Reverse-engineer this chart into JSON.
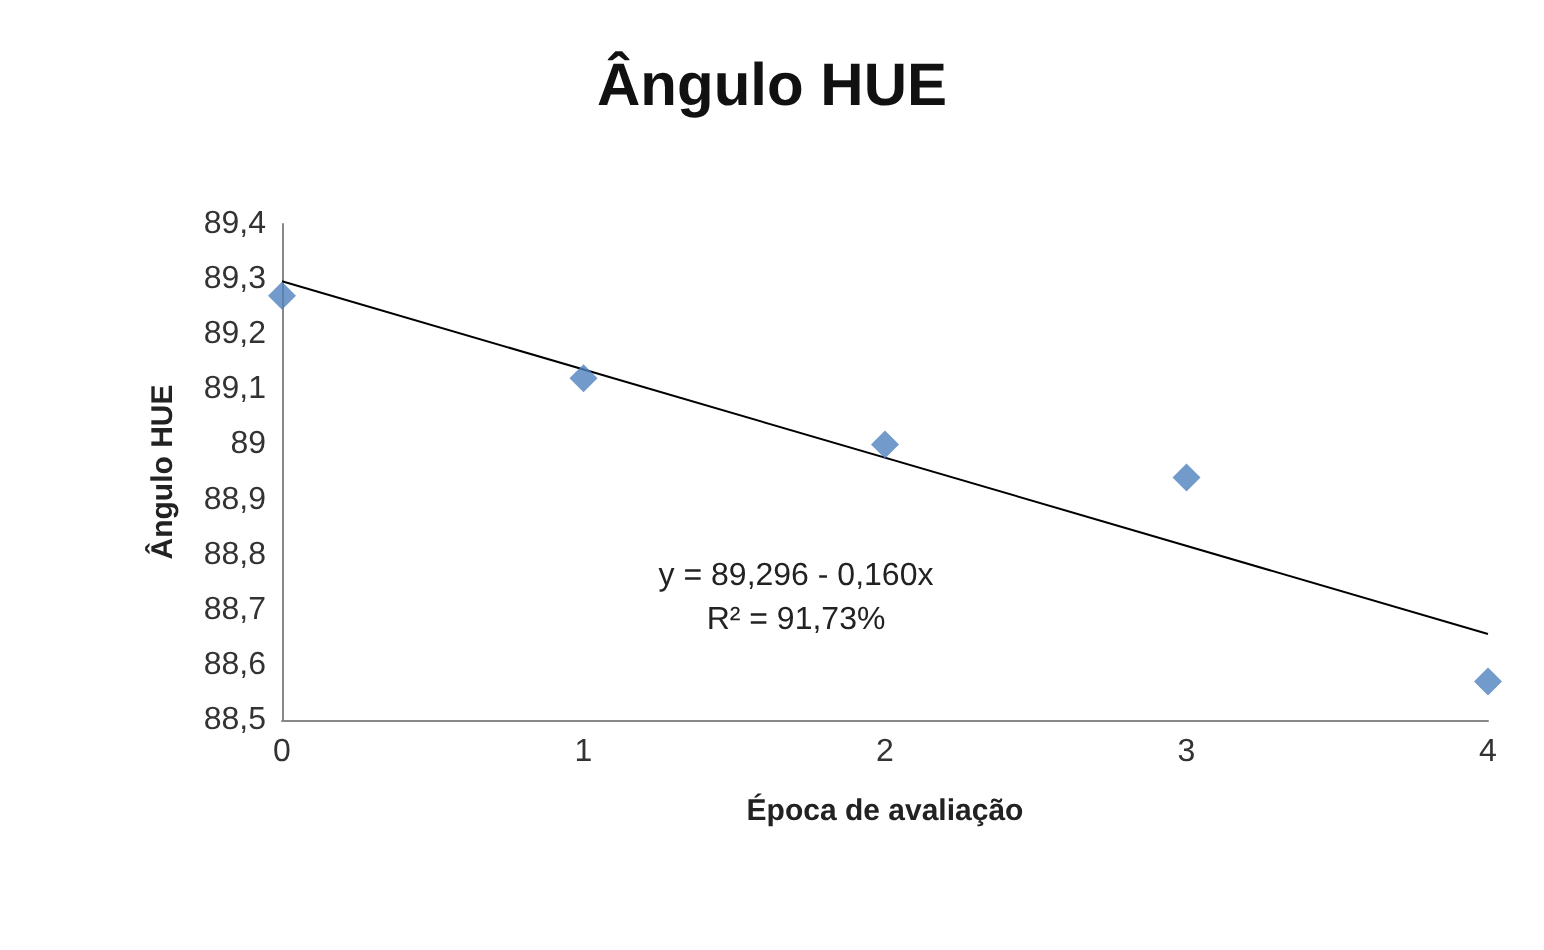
{
  "chart_data": {
    "type": "scatter",
    "title": "Ângulo HUE",
    "xlabel": "Época de avaliação",
    "ylabel": "Ângulo HUE",
    "x": [
      0,
      1,
      2,
      3,
      4
    ],
    "series": [
      {
        "color": "#4f81bd",
        "marker": "diamond",
        "values": [
          89.27,
          89.12,
          89.0,
          88.94,
          88.57
        ]
      },
      {
        "type": "line",
        "color": "#000000",
        "marker": "none",
        "x": [
          0,
          4
        ],
        "values": [
          89.296,
          88.656
        ]
      }
    ],
    "xlim": [
      0,
      4
    ],
    "xticks": [
      0,
      1,
      2,
      3,
      4
    ],
    "ylim": [
      88.5,
      89.4
    ],
    "yticks": [
      {
        "value": 88.5,
        "label": "88,5"
      },
      {
        "value": 88.6,
        "label": "88,6"
      },
      {
        "value": 88.7,
        "label": "88,7"
      },
      {
        "value": 88.8,
        "label": "88,8"
      },
      {
        "value": 88.9,
        "label": "88,9"
      },
      89,
      {
        "value": 89.1,
        "label": "89,1"
      },
      {
        "value": 89.2,
        "label": "89,2"
      },
      {
        "value": 89.3,
        "label": "89,3"
      },
      {
        "value": 89.4,
        "label": "89,4"
      }
    ],
    "grid": false,
    "annotations": [
      "y = 89,296 - 0,160x",
      "R² = 91,73%"
    ]
  }
}
